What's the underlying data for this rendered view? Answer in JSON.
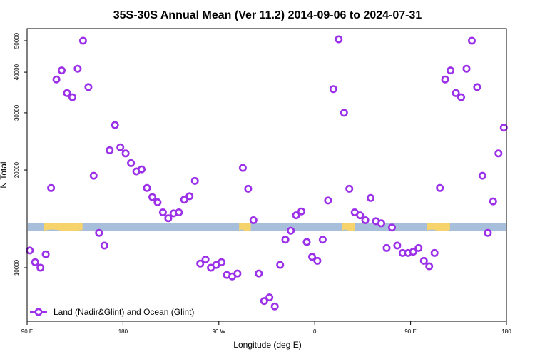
{
  "chart_data": {
    "type": "scatter",
    "title": "35S-30S Annual Mean (Ver 11.2)   2014-09-06 to 2024-07-31",
    "xlabel": "Longitude (deg E)",
    "ylabel": "N Total",
    "x_ticks": [
      {
        "value": 90,
        "label": "90 E"
      },
      {
        "value": 180,
        "label": "180"
      },
      {
        "value": 270,
        "label": "90 W"
      },
      {
        "value": 360,
        "label": "0"
      },
      {
        "value": 450,
        "label": "90 E"
      },
      {
        "value": 540,
        "label": "180"
      }
    ],
    "y_ticks": [
      10000,
      20000,
      30000,
      40000,
      50000
    ],
    "y_scale": "log",
    "xlim": [
      90,
      540
    ],
    "ylim": [
      7000,
      55000
    ],
    "grid": false,
    "legend": {
      "position": "bottom-left"
    },
    "colors": {
      "marker": "#9b30e8",
      "ocean": "#a8bfdc",
      "land": "#f7d46b"
    },
    "series": [
      {
        "name": "Land (Nadir&Glint) and Ocean (Glint)",
        "x": [
          92.5,
          97.5,
          102.5,
          107.5,
          112.5,
          117.5,
          122.5,
          127.5,
          132.5,
          137.5,
          142.5,
          147.5,
          152.5,
          157.5,
          162.5,
          167.5,
          172.5,
          177.5,
          182.5,
          187.5,
          192.5,
          197.5,
          202.5,
          207.5,
          212.5,
          217.5,
          222.5,
          227.5,
          232.5,
          237.5,
          242.5,
          247.5,
          252.5,
          257.5,
          262.5,
          267.5,
          272.5,
          277.5,
          282.5,
          287.5,
          292.5,
          297.5,
          302.5,
          307.5,
          312.5,
          317.5,
          322.5,
          327.5,
          332.5,
          337.5,
          342.5,
          347.5,
          352.5,
          357.5,
          362.5,
          367.5,
          372.5,
          377.5,
          382.5,
          387.5,
          392.5,
          397.5,
          402.5,
          407.5,
          412.5,
          417.5,
          422.5,
          427.5,
          432.5,
          437.5,
          442.5,
          447.5,
          452.5,
          457.5,
          462.5,
          467.5,
          472.5,
          477.5,
          482.5,
          487.5,
          492.5,
          497.5,
          502.5,
          507.5,
          512.5,
          517.5,
          522.5,
          527.5,
          532.5,
          537.5
        ],
        "y": [
          11300,
          10400,
          10000,
          11000,
          17600,
          38000,
          40500,
          34500,
          33500,
          41000,
          50000,
          36000,
          19200,
          12800,
          11700,
          23000,
          27500,
          23500,
          22500,
          21000,
          19800,
          20100,
          17600,
          16500,
          15900,
          14800,
          14200,
          14700,
          14800,
          16200,
          16600,
          18500,
          10300,
          10600,
          10000,
          10200,
          10400,
          9500,
          9400,
          9600,
          20300,
          17500,
          14000,
          9600,
          7900,
          8100,
          7600,
          10200,
          12200,
          13000,
          14500,
          14900,
          12000,
          10800,
          10500,
          12200,
          16100,
          35500,
          50500,
          30000,
          17500,
          14800,
          14500,
          14000,
          16400,
          13900,
          13700,
          11500,
          13300,
          11700,
          11100,
          11100,
          11200,
          11500,
          10500,
          10100,
          11100,
          17600,
          38000,
          40500,
          34500,
          33500,
          41000,
          50000,
          36000,
          19200,
          12800,
          16000,
          22500,
          27000
        ]
      }
    ]
  }
}
